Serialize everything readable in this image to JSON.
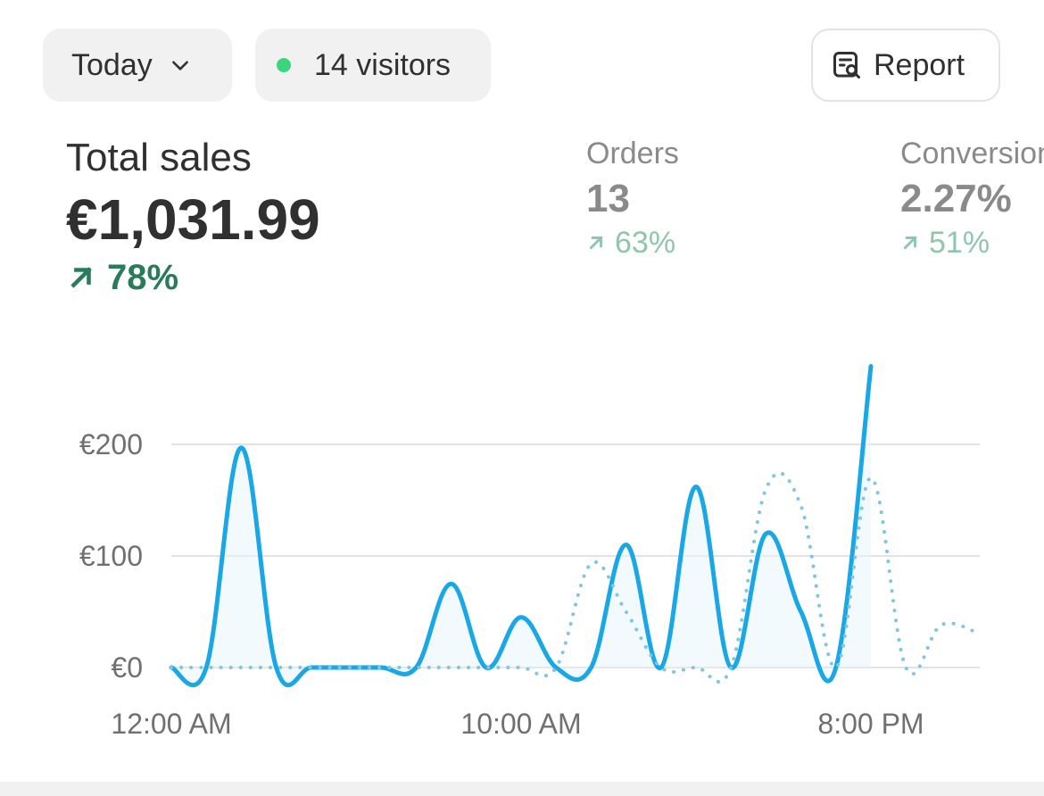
{
  "filters": {
    "date_range_label": "Today",
    "visitors_label": "14 visitors"
  },
  "toolbar": {
    "report_label": "Report"
  },
  "metrics": {
    "total_sales": {
      "label": "Total sales",
      "value": "€1,031.99",
      "change": "78%"
    },
    "orders": {
      "label": "Orders",
      "value": "13",
      "change": "63%"
    },
    "conversion": {
      "label": "Conversion",
      "value": "2.27%",
      "change": "51%"
    }
  },
  "icons": {
    "dropdown": "chevron-down-icon",
    "live": "live-dot-icon",
    "report": "report-search-icon",
    "trend": "arrow-up-right-icon"
  },
  "colors": {
    "current_line": "#1aa7e6",
    "comparison_line": "#7fc6e0",
    "positive_strong": "#297c5a",
    "positive_muted": "#8ec6ae",
    "live_dot": "#3ad67c"
  },
  "chart_data": {
    "type": "line",
    "x": [
      "12:00 AM",
      "1:00 AM",
      "2:00 AM",
      "3:00 AM",
      "4:00 AM",
      "5:00 AM",
      "6:00 AM",
      "7:00 AM",
      "8:00 AM",
      "9:00 AM",
      "10:00 AM",
      "11:00 AM",
      "12:00 PM",
      "1:00 PM",
      "2:00 PM",
      "3:00 PM",
      "4:00 PM",
      "5:00 PM",
      "6:00 PM",
      "7:00 PM",
      "8:00 PM",
      "9:00 PM",
      "10:00 PM",
      "11:00 PM"
    ],
    "x_tick_labels": [
      "12:00 AM",
      "10:00 AM",
      "8:00 PM"
    ],
    "y_tick_labels": [
      "€0",
      "€100",
      "€200"
    ],
    "ylim": [
      0,
      200
    ],
    "grid": true,
    "series": [
      {
        "style": "solid",
        "values": [
          0,
          0,
          197,
          0,
          0,
          0,
          0,
          0,
          75,
          0,
          45,
          0,
          0,
          110,
          0,
          162,
          0,
          120,
          50,
          0,
          270,
          null,
          null,
          null
        ]
      },
      {
        "style": "dotted",
        "values": [
          0,
          0,
          0,
          0,
          0,
          0,
          0,
          0,
          0,
          0,
          0,
          0,
          93,
          50,
          0,
          0,
          0,
          160,
          145,
          0,
          170,
          0,
          38,
          32
        ]
      }
    ]
  }
}
